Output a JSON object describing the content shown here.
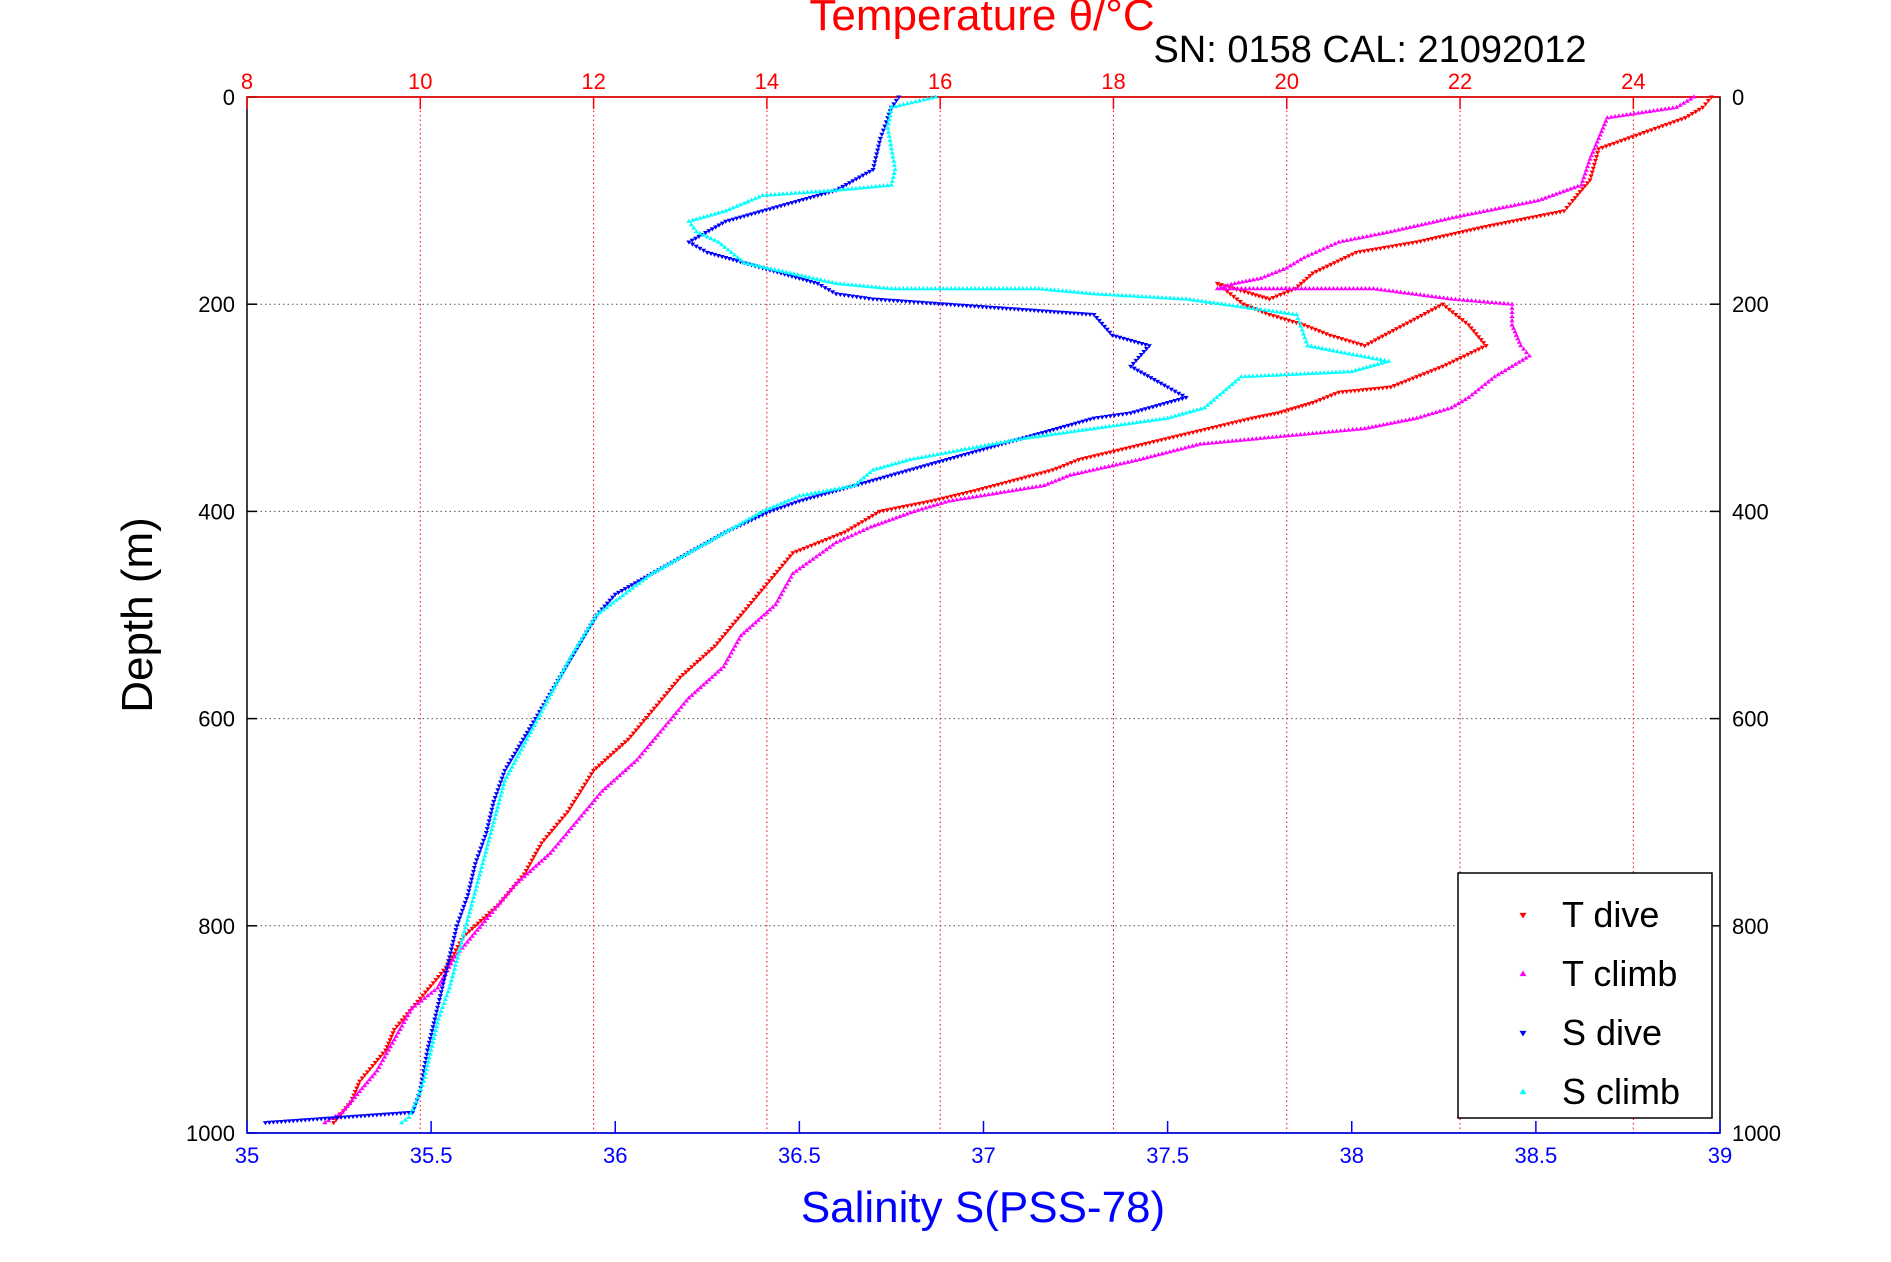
{
  "chart_data": {
    "type": "scatter",
    "title": "Temperature θ/°C",
    "subtitle": "SN: 0158   CAL: 21092012",
    "ylabel": "Depth (m)",
    "xlabel": "Salinity S(PSS-78)",
    "top_axis": {
      "label": "Temperature θ/°C",
      "range": [
        8,
        25
      ],
      "ticks": [
        8,
        10,
        12,
        14,
        16,
        18,
        20,
        22,
        24
      ],
      "color": "#ff0000"
    },
    "bottom_axis": {
      "label": "Salinity S(PSS-78)",
      "range": [
        35,
        39
      ],
      "ticks": [
        35,
        35.5,
        36,
        36.5,
        37,
        37.5,
        38,
        38.5,
        39
      ],
      "color": "#0000ff"
    },
    "y_axis": {
      "range": [
        0,
        1000
      ],
      "reversed": true,
      "ticks": [
        0,
        200,
        400,
        600,
        800,
        1000
      ]
    },
    "grid": true,
    "legend": {
      "placement": "bottom-right",
      "entries": [
        {
          "label": "T dive",
          "color": "#ff0000",
          "marker": "triangle-down"
        },
        {
          "label": "T climb",
          "color": "#ff00ff",
          "marker": "triangle-up"
        },
        {
          "label": "S dive",
          "color": "#0000ff",
          "marker": "triangle-down"
        },
        {
          "label": "S climb",
          "color": "#00ffff",
          "marker": "triangle-up"
        }
      ]
    },
    "series": [
      {
        "name": "T dive",
        "axis": "top",
        "color": "#ff0000",
        "marker": "triangle-down",
        "x": [
          24.9,
          24.8,
          24.6,
          23.6,
          23.5,
          23.3,
          23.2,
          22.3,
          21.5,
          20.8,
          20.3,
          20.1,
          19.8,
          19.6,
          19.2,
          19.5,
          19.8,
          20.2,
          20.5,
          20.9,
          21.8,
          22.1,
          22.3,
          21.8,
          21.2,
          20.6,
          20.3,
          20.1,
          19.9,
          19.6,
          19.1,
          18.6,
          17.6,
          17.3,
          16.4,
          15.9,
          15.3,
          14.9,
          14.3,
          14.0,
          13.7,
          13.4,
          13.0,
          12.7,
          12.4,
          12.0,
          11.7,
          11.4,
          11.2,
          10.9,
          10.5,
          10.3,
          10.0,
          9.7,
          9.6,
          9.3,
          9.2,
          9.0
        ],
        "y": [
          0,
          10,
          20,
          50,
          80,
          100,
          110,
          125,
          140,
          150,
          170,
          185,
          195,
          190,
          180,
          200,
          210,
          220,
          230,
          240,
          200,
          220,
          240,
          260,
          280,
          285,
          295,
          300,
          305,
          310,
          320,
          330,
          350,
          360,
          380,
          390,
          400,
          420,
          440,
          470,
          500,
          530,
          560,
          590,
          620,
          650,
          690,
          720,
          750,
          780,
          810,
          840,
          870,
          900,
          920,
          950,
          970,
          990
        ]
      },
      {
        "name": "T climb",
        "axis": "top",
        "color": "#ff00ff",
        "marker": "triangle-up",
        "x": [
          24.7,
          24.5,
          23.7,
          23.6,
          23.5,
          23.4,
          22.9,
          22.0,
          21.2,
          20.6,
          20.2,
          20.0,
          19.7,
          19.4,
          19.2,
          21.0,
          21.9,
          22.6,
          22.6,
          22.7,
          22.8,
          22.4,
          22.1,
          21.9,
          21.5,
          21.2,
          20.9,
          19.0,
          18.3,
          17.5,
          17.2,
          16.1,
          15.7,
          15.2,
          14.8,
          14.3,
          14.1,
          13.7,
          13.5,
          13.1,
          12.8,
          12.5,
          12.1,
          11.8,
          11.5,
          11.1,
          10.8,
          10.4,
          10.2,
          9.9,
          9.7,
          9.5,
          9.3,
          9.1,
          8.9
        ],
        "y": [
          0,
          10,
          20,
          40,
          60,
          85,
          100,
          115,
          130,
          140,
          155,
          165,
          175,
          180,
          185,
          185,
          195,
          200,
          220,
          240,
          250,
          270,
          290,
          300,
          310,
          315,
          320,
          335,
          350,
          365,
          375,
          390,
          400,
          415,
          430,
          460,
          490,
          520,
          550,
          580,
          610,
          640,
          670,
          700,
          730,
          760,
          790,
          830,
          860,
          880,
          910,
          940,
          960,
          980,
          990
        ]
      },
      {
        "name": "S dive",
        "axis": "bottom",
        "color": "#0000ff",
        "marker": "triangle-down",
        "x": [
          36.77,
          36.75,
          36.74,
          36.72,
          36.7,
          36.6,
          36.5,
          36.4,
          36.3,
          36.2,
          36.25,
          36.35,
          36.45,
          36.55,
          36.6,
          36.7,
          36.9,
          37.3,
          37.35,
          37.45,
          37.4,
          37.5,
          37.55,
          37.45,
          37.4,
          37.3,
          37.2,
          37.1,
          37.0,
          36.9,
          36.8,
          36.7,
          36.6,
          36.5,
          36.42,
          36.3,
          36.2,
          36.1,
          36.0,
          35.95,
          35.9,
          35.85,
          35.8,
          35.75,
          35.7,
          35.67,
          35.65,
          35.62,
          35.6,
          35.57,
          35.55,
          35.53,
          35.51,
          35.49,
          35.48,
          35.47,
          35.45,
          35.05
        ],
        "y": [
          0,
          10,
          20,
          40,
          70,
          90,
          100,
          110,
          120,
          140,
          150,
          160,
          170,
          180,
          190,
          195,
          200,
          210,
          230,
          240,
          260,
          280,
          290,
          300,
          305,
          310,
          320,
          330,
          340,
          350,
          360,
          370,
          380,
          390,
          400,
          420,
          440,
          460,
          480,
          500,
          530,
          560,
          590,
          620,
          650,
          680,
          710,
          740,
          770,
          800,
          830,
          860,
          890,
          920,
          940,
          960,
          980,
          990
        ]
      },
      {
        "name": "S climb",
        "axis": "bottom",
        "color": "#00ffff",
        "marker": "triangle-up",
        "x": [
          36.87,
          36.75,
          36.74,
          36.75,
          36.76,
          36.75,
          36.6,
          36.4,
          36.3,
          36.2,
          36.22,
          36.28,
          36.35,
          36.6,
          36.75,
          37.15,
          37.3,
          37.55,
          37.85,
          37.88,
          37.95,
          38.1,
          38.0,
          37.7,
          37.65,
          37.6,
          37.5,
          37.3,
          37.1,
          36.95,
          36.8,
          36.7,
          36.65,
          36.5,
          36.4,
          36.3,
          36.2,
          36.1,
          35.95,
          35.88,
          35.82,
          35.76,
          35.7,
          35.67,
          35.64,
          35.61,
          35.58,
          35.55,
          35.52,
          35.5,
          35.48,
          35.46,
          35.44,
          35.42
        ],
        "y": [
          0,
          10,
          30,
          50,
          70,
          85,
          90,
          95,
          110,
          120,
          130,
          140,
          160,
          180,
          185,
          185,
          190,
          195,
          210,
          240,
          245,
          255,
          265,
          270,
          285,
          300,
          310,
          320,
          330,
          340,
          350,
          360,
          375,
          385,
          400,
          420,
          440,
          460,
          500,
          540,
          580,
          620,
          660,
          700,
          740,
          780,
          820,
          860,
          890,
          920,
          950,
          970,
          985,
          990
        ]
      }
    ]
  }
}
